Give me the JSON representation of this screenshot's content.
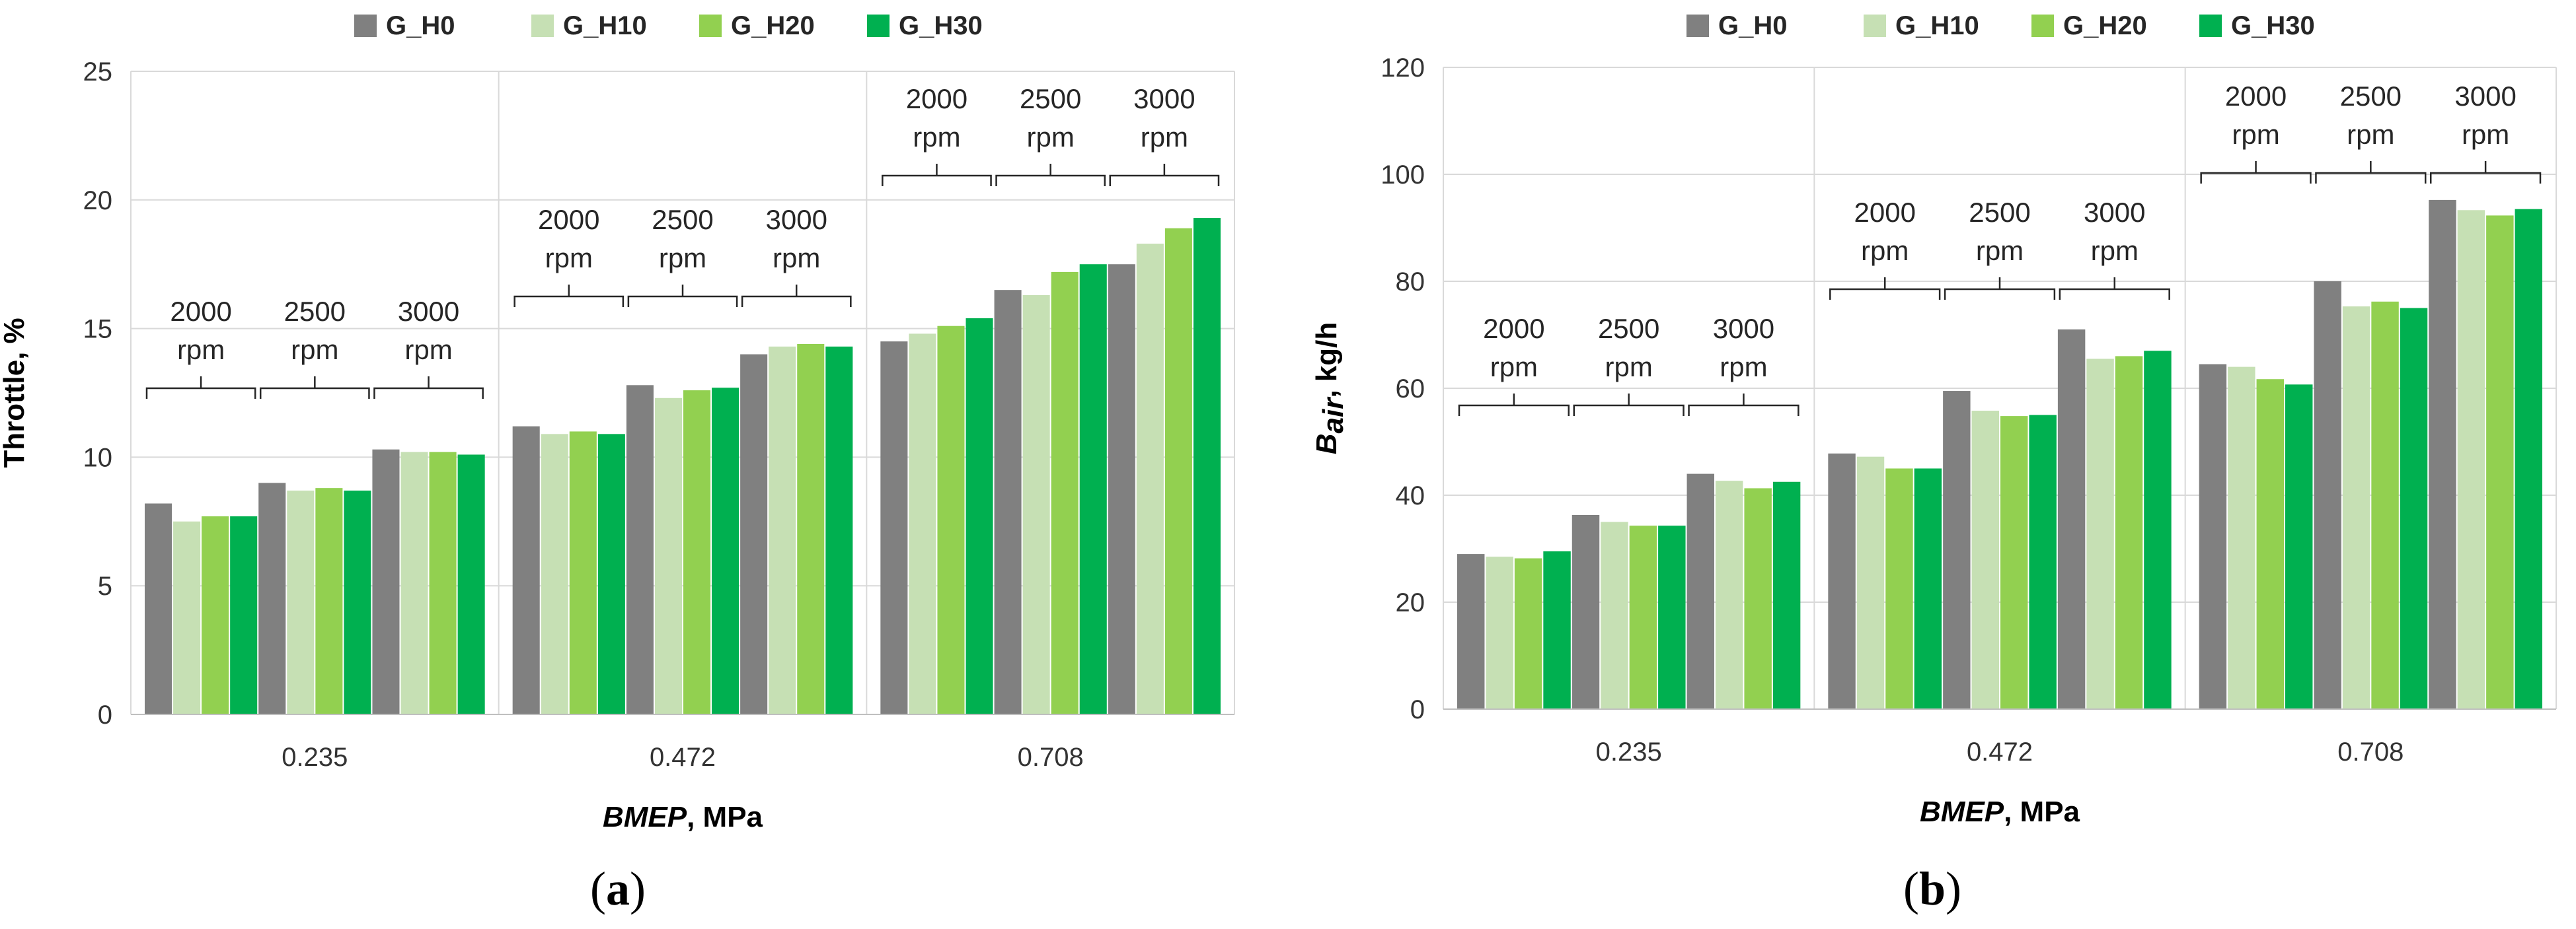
{
  "colors": {
    "G_H0": "#808080",
    "G_H10": "#c6e0b4",
    "G_H20": "#92d050",
    "G_H30": "#00b050"
  },
  "chart_data": [
    {
      "type": "bar",
      "panel": "a",
      "subfigure_label": "a",
      "legend": [
        "G_H0",
        "G_H10",
        "G_H20",
        "G_H30"
      ],
      "legend_position": "top-center",
      "categories": [
        "0.235",
        "0.472",
        "0.708"
      ],
      "subgroups": [
        "2000 rpm",
        "2500 rpm",
        "3000 rpm"
      ],
      "subgroup_labels": [
        [
          "2000",
          "rpm"
        ],
        [
          "2500",
          "rpm"
        ],
        [
          "3000",
          "rpm"
        ]
      ],
      "ylabel": "Throttle, %",
      "xlabel_italic": "BMEP",
      "xlabel_rest": ", MPa",
      "ylim": [
        0,
        25
      ],
      "yticks": [
        0,
        5,
        10,
        15,
        20,
        25
      ],
      "grid": true,
      "series": [
        {
          "name": "G_H0",
          "values": [
            [
              8.2,
              9.0,
              10.3
            ],
            [
              11.2,
              12.8,
              14.0
            ],
            [
              14.5,
              16.5,
              17.5
            ]
          ]
        },
        {
          "name": "G_H10",
          "values": [
            [
              7.5,
              8.7,
              10.2
            ],
            [
              10.9,
              12.3,
              14.3
            ],
            [
              14.8,
              16.3,
              18.3
            ]
          ]
        },
        {
          "name": "G_H20",
          "values": [
            [
              7.7,
              8.8,
              10.2
            ],
            [
              11.0,
              12.6,
              14.4
            ],
            [
              15.1,
              17.2,
              18.9
            ]
          ]
        },
        {
          "name": "G_H30",
          "values": [
            [
              7.7,
              8.7,
              10.1
            ],
            [
              10.9,
              12.7,
              14.3
            ],
            [
              15.4,
              17.5,
              19.3
            ]
          ]
        }
      ]
    },
    {
      "type": "bar",
      "panel": "b",
      "subfigure_label": "b",
      "legend": [
        "G_H0",
        "G_H10",
        "G_H20",
        "G_H30"
      ],
      "legend_position": "top-center",
      "categories": [
        "0.235",
        "0.472",
        "0.708"
      ],
      "subgroups": [
        "2000 rpm",
        "2500 rpm",
        "3000 rpm"
      ],
      "subgroup_labels": [
        [
          "2000",
          "rpm"
        ],
        [
          "2500",
          "rpm"
        ],
        [
          "3000",
          "rpm"
        ]
      ],
      "ylabel_main": "B",
      "ylabel_sub": "air",
      "ylabel_rest": ", kg/h",
      "xlabel_italic": "BMEP",
      "xlabel_rest": ", MPa",
      "ylim": [
        0,
        120
      ],
      "yticks": [
        0,
        20,
        40,
        60,
        80,
        100,
        120
      ],
      "grid": true,
      "series": [
        {
          "name": "G_H0",
          "values": [
            [
              29.0,
              36.3,
              44.0
            ],
            [
              47.8,
              59.5,
              71.0
            ],
            [
              64.5,
              80.0,
              95.2
            ]
          ]
        },
        {
          "name": "G_H10",
          "values": [
            [
              28.5,
              35.0,
              42.7
            ],
            [
              47.2,
              55.8,
              65.5
            ],
            [
              64.0,
              75.3,
              93.3
            ]
          ]
        },
        {
          "name": "G_H20",
          "values": [
            [
              28.2,
              34.3,
              41.3
            ],
            [
              45.0,
              54.8,
              66.0
            ],
            [
              61.7,
              76.2,
              92.3
            ]
          ]
        },
        {
          "name": "G_H30",
          "values": [
            [
              29.5,
              34.3,
              42.5
            ],
            [
              45.0,
              55.0,
              67.0
            ],
            [
              60.7,
              75.0,
              93.5
            ]
          ]
        }
      ]
    }
  ]
}
